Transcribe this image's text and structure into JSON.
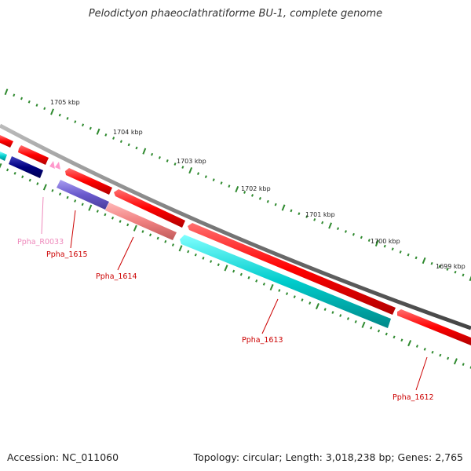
{
  "title": "Pelodictyon phaeoclathratiforme BU-1, complete genome",
  "footer": {
    "accession": "Accession: NC_011060",
    "summary": "Topology: circular; Length: 3,018,238 bp; Genes: 2,765"
  },
  "colors": {
    "backbone": "#777777",
    "tick": "#2f8a2f",
    "forward_gene": "#ff0000",
    "reverse_cyan": "#00c8c8",
    "navy": "#000080",
    "slate": "#6a5acd",
    "salmon": "#f08080",
    "rna": "#ff99cc",
    "label_red": "#cc0000",
    "label_pink": "#ee88bb"
  },
  "ticks": [
    {
      "label": "1705 kbp"
    },
    {
      "label": "1704 kbp"
    },
    {
      "label": "1703 kbp"
    },
    {
      "label": "1702 kbp"
    },
    {
      "label": "1701 kbp"
    },
    {
      "label": "1700 kbp"
    },
    {
      "label": "1699 kbp"
    }
  ],
  "genes": [
    {
      "label": "Ppha_R0033"
    },
    {
      "label": "Ppha_1615"
    },
    {
      "label": "Ppha_1614"
    },
    {
      "label": "Ppha_1613"
    },
    {
      "label": "Ppha_1612"
    }
  ]
}
